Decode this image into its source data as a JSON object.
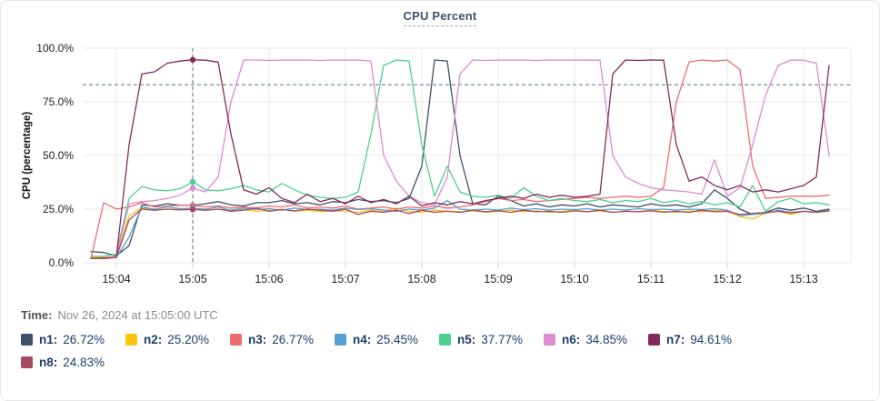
{
  "title": "CPU Percent",
  "info": {
    "time_label": "Time:",
    "time_value": "Nov 26, 2024 at 15:05:00 UTC"
  },
  "chart_data": {
    "type": "line",
    "title": "CPU Percent",
    "ylabel": "CPU (percentage)",
    "ylim": [
      0,
      100
    ],
    "grid": true,
    "y_ticks": [
      {
        "value": 100,
        "label": "100.0%"
      },
      {
        "value": 75,
        "label": "75.0%"
      },
      {
        "value": 50,
        "label": "50.0%"
      },
      {
        "value": 25,
        "label": "25.0%"
      },
      {
        "value": 0,
        "label": "0.0%"
      }
    ],
    "x_ticks": [
      {
        "t": 240,
        "label": "15:04"
      },
      {
        "t": 300,
        "label": "15:05"
      },
      {
        "t": 360,
        "label": "15:06"
      },
      {
        "t": 420,
        "label": "15:07"
      },
      {
        "t": 480,
        "label": "15:08"
      },
      {
        "t": 540,
        "label": "15:09"
      },
      {
        "t": 600,
        "label": "15:10"
      },
      {
        "t": 660,
        "label": "15:11"
      },
      {
        "t": 720,
        "label": "15:12"
      },
      {
        "t": 780,
        "label": "15:13"
      }
    ],
    "threshold_value": 83,
    "cursor_t": 300,
    "cursor_index": 8,
    "cursor_time": "15:05:00",
    "t_seconds_since_1500": [
      220,
      230,
      240,
      250,
      260,
      270,
      280,
      290,
      300,
      310,
      320,
      330,
      340,
      350,
      360,
      370,
      380,
      390,
      400,
      410,
      420,
      430,
      440,
      450,
      460,
      470,
      480,
      490,
      500,
      510,
      520,
      530,
      540,
      550,
      560,
      570,
      580,
      590,
      600,
      610,
      620,
      630,
      640,
      650,
      660,
      670,
      680,
      690,
      700,
      710,
      720,
      730,
      740,
      750,
      760,
      770,
      780,
      790,
      800
    ],
    "series": [
      {
        "name": "n1",
        "color": "#3e506b",
        "cursor_label": "26.72%",
        "values": [
          5.2,
          4.8,
          3.2,
          8,
          27,
          26.5,
          27.5,
          26.8,
          26.72,
          27.5,
          28.5,
          27,
          26.5,
          28,
          28,
          29,
          27.5,
          28,
          27,
          28.5,
          28,
          29.5,
          28.5,
          29,
          28,
          30,
          45,
          94.5,
          94,
          50,
          27.5,
          27,
          31,
          29,
          26.5,
          27.5,
          26,
          27,
          26.5,
          27.5,
          26,
          27,
          26.5,
          26,
          27.5,
          26.5,
          27,
          26,
          27.5,
          34,
          30,
          25,
          22.5,
          23.5,
          25.5,
          24.5,
          25.5,
          24,
          25
        ]
      },
      {
        "name": "n2",
        "color": "#fac412",
        "cursor_label": "25.20%",
        "values": [
          2.5,
          2.5,
          3,
          22,
          25.5,
          24.5,
          25,
          24.8,
          25.2,
          24.5,
          25,
          24.2,
          24.8,
          24,
          24.5,
          25,
          24,
          24.5,
          23.8,
          24.2,
          24,
          23.5,
          24.5,
          23.8,
          25.5,
          24,
          23.5,
          24.5,
          24,
          23.8,
          24.2,
          23.5,
          24,
          24.5,
          23.8,
          24.2,
          23.5,
          24,
          24.5,
          23.8,
          24.2,
          23.5,
          24,
          23.8,
          24.5,
          24,
          23.5,
          24.2,
          23.8,
          24.5,
          24,
          21.5,
          20.5,
          23,
          24,
          22.5,
          24,
          23.5,
          24
        ]
      },
      {
        "name": "n3",
        "color": "#ef6c6c",
        "cursor_label": "26.77%",
        "values": [
          2,
          28,
          25,
          26,
          28,
          26,
          26.5,
          26.8,
          26.77,
          26,
          26.5,
          25.5,
          26,
          25.5,
          26.5,
          26,
          27,
          25.5,
          26,
          25.5,
          26.5,
          25,
          25.5,
          26,
          25,
          26,
          25.5,
          26.5,
          25.5,
          26,
          27,
          28.5,
          30,
          29,
          29.5,
          28.5,
          29,
          29.5,
          30,
          30.5,
          30,
          30.5,
          31,
          30.5,
          31,
          35,
          75,
          93.5,
          94.5,
          94,
          94.5,
          90,
          45,
          30,
          30.5,
          31,
          31,
          31,
          31.5
        ]
      },
      {
        "name": "n4",
        "color": "#57a0d6",
        "cursor_label": "25.45%",
        "values": [
          2,
          2,
          2.5,
          12,
          26,
          25,
          26,
          25.2,
          25.45,
          25,
          26,
          24.5,
          25.5,
          24.8,
          25.2,
          24.5,
          25.5,
          24.8,
          25,
          24.5,
          25.5,
          24.8,
          25.2,
          24.5,
          24,
          25,
          24.5,
          25.5,
          29,
          25,
          24.5,
          25,
          24.5,
          25.5,
          24.8,
          25.2,
          24.5,
          25,
          24.8,
          25.2,
          24.5,
          25,
          24.5,
          25.2,
          24.8,
          25,
          24.5,
          25,
          24.8,
          25.2,
          24.5,
          22,
          22.5,
          23,
          24.5,
          23.5,
          24,
          23.5,
          24.5
        ]
      },
      {
        "name": "n5",
        "color": "#4cd08d",
        "cursor_label": "37.77%",
        "values": [
          3,
          3,
          4,
          30,
          35.5,
          34,
          33.5,
          34.5,
          37.77,
          34,
          33.5,
          34.5,
          36,
          34,
          33,
          37,
          34,
          31.5,
          30.5,
          30,
          30.5,
          33,
          60,
          92,
          94.5,
          94,
          55,
          31,
          45,
          33,
          31,
          30.5,
          31.5,
          30,
          35,
          31,
          29,
          30,
          29,
          28.5,
          29.5,
          28,
          29,
          28.5,
          30,
          28,
          29,
          27.5,
          28.5,
          27,
          28,
          26,
          36,
          24,
          28.5,
          30,
          27.5,
          28,
          27
        ]
      },
      {
        "name": "n6",
        "color": "#dd8bd2",
        "cursor_label": "34.85%",
        "values": [
          2,
          2,
          3,
          27.5,
          28.5,
          29,
          30,
          31.5,
          34.85,
          33,
          40,
          75,
          94.5,
          94.5,
          94.3,
          94.5,
          94.4,
          94.5,
          94.3,
          94.5,
          94.4,
          94.5,
          94,
          50,
          38,
          31,
          28,
          27,
          40,
          88,
          94.5,
          94.3,
          94.5,
          94.4,
          94.5,
          94.3,
          94.5,
          94.4,
          94.5,
          94.4,
          94.4,
          50,
          40,
          37,
          35,
          34,
          33.5,
          33,
          32,
          48,
          31,
          35,
          55,
          78,
          92,
          94.5,
          94.4,
          93,
          50
        ]
      },
      {
        "name": "n7",
        "color": "#84295c",
        "cursor_label": "94.61%",
        "values": [
          2,
          2.2,
          2.5,
          55,
          88,
          89,
          93,
          94,
          94.61,
          94.4,
          93.5,
          60,
          34,
          32,
          35,
          30,
          28,
          32,
          28.5,
          30,
          27.5,
          31,
          28,
          29.5,
          27.5,
          31,
          26.5,
          28,
          27,
          28.5,
          27.5,
          29,
          30,
          31,
          30,
          32,
          30.5,
          31.5,
          30.5,
          31,
          32,
          88,
          94.5,
          94.3,
          94.5,
          94.4,
          55,
          38,
          40,
          36,
          34,
          36,
          33,
          34,
          33,
          34.5,
          36,
          40,
          92
        ]
      },
      {
        "name": "n8",
        "color": "#a64a64",
        "cursor_label": "24.83%",
        "values": [
          2,
          2,
          2.5,
          20,
          25,
          24.5,
          25,
          24.6,
          24.83,
          24.5,
          25,
          24,
          24.5,
          25.5,
          24,
          24.8,
          24.2,
          25,
          24.5,
          24,
          25,
          22.5,
          24,
          23.5,
          24.5,
          23,
          24.5,
          23.5,
          24,
          23.5,
          24.5,
          23.8,
          24.2,
          23.5,
          24.5,
          23.8,
          24,
          23.5,
          24.2,
          23.8,
          24.5,
          23.5,
          24,
          23.8,
          24.2,
          23.5,
          24,
          23.5,
          24.5,
          23.8,
          24,
          22.5,
          23,
          23.5,
          24,
          23.2,
          24,
          23.5,
          24.2
        ]
      }
    ],
    "colors": {
      "grid": "#e9e9ec",
      "tick_text": "#222222",
      "axis_title": "#111111",
      "crosshair": "#4e7287",
      "threshold": "#4e7287",
      "legend_text": "#1d3c6e"
    }
  }
}
